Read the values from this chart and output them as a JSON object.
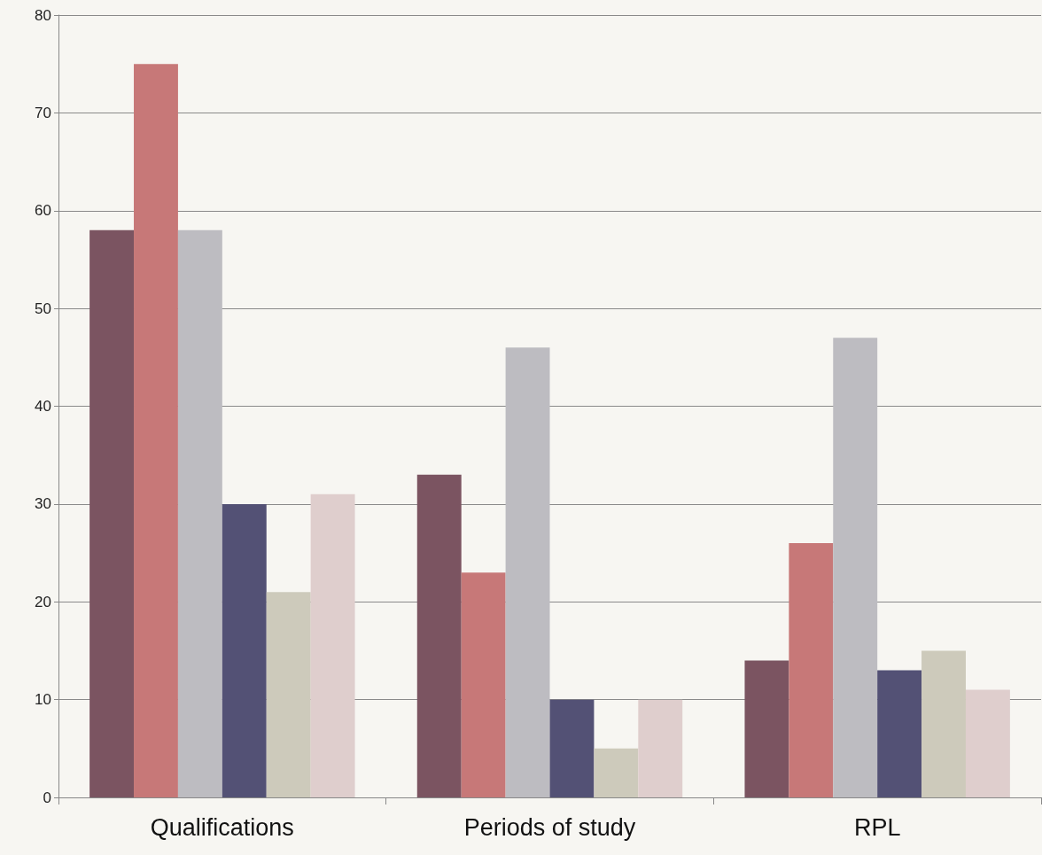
{
  "chart_data": {
    "type": "bar",
    "categories": [
      "Qualifications",
      "Periods of study",
      "RPL"
    ],
    "series": [
      {
        "color": "#7b5461",
        "values": [
          58,
          33,
          14
        ]
      },
      {
        "color": "#c77878",
        "values": [
          75,
          23,
          26
        ]
      },
      {
        "color": "#bdbcc1",
        "values": [
          58,
          46,
          47
        ]
      },
      {
        "color": "#535175",
        "values": [
          30,
          10,
          13
        ]
      },
      {
        "color": "#cdcabb",
        "values": [
          21,
          5,
          15
        ]
      },
      {
        "color": "#dfcecd",
        "values": [
          31,
          10,
          11
        ]
      }
    ],
    "ylim": [
      0,
      80
    ],
    "yticks": [
      0,
      10,
      20,
      30,
      40,
      50,
      60,
      70,
      80
    ],
    "grid": "y"
  }
}
